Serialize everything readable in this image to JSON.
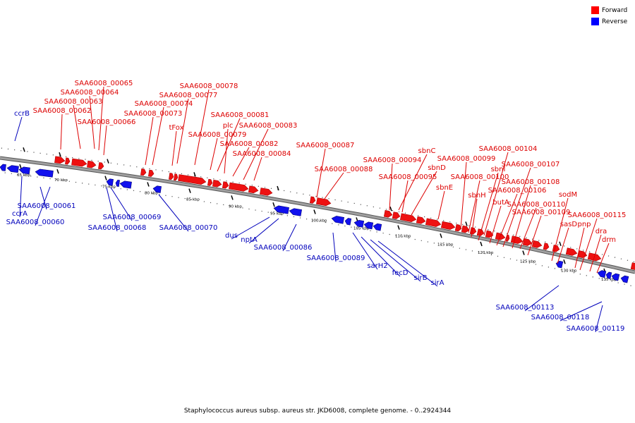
{
  "legend": {
    "forward_label": "Forward",
    "reverse_label": "Reverse",
    "forward_color": "#ff0000",
    "reverse_color": "#0000ff"
  },
  "caption": "Staphylococcus aureus subsp. aureus str. JKD6008, complete genome. - 0..2924344",
  "colors": {
    "forward_gene": "#ee1111",
    "reverse_gene": "#1111ee",
    "backbone": "#808080"
  },
  "ticks": [
    "65 kbp",
    "70 kbp",
    "75 kbp",
    "80 kbp",
    "85 kbp",
    "90 kbp",
    "95 kbp",
    "100 kbp",
    "105 kbp",
    "110 kbp",
    "115 kbp",
    "120 kbp",
    "125 kbp",
    "130 kbp",
    "135 kbp"
  ],
  "forward_labels": [
    "SAA6008_00065",
    "SAA6008_00064",
    "SAA6008_00063",
    "SAA6008_00062",
    "SAA6008_00066",
    "SAA6008_00074",
    "SAA6008_00073",
    "SAA6008_00078",
    "SAA6008_00077",
    "tFox",
    "SAA6008_00081",
    "plc",
    "SAA6008_00083",
    "SAA6008_00079",
    "SAA6008_00082",
    "SAA6008_00084",
    "SAA6008_00087",
    "SAA6008_00088",
    "sbnC",
    "SAA6008_00094",
    "sbnD",
    "SAA6008_00095",
    "sbnE",
    "SAA6008_00104",
    "SAA6008_00099",
    "sbnI",
    "SAA6008_00107",
    "SAA6008_00100",
    "sbnH",
    "SAA6008_00108",
    "SAA6008_00106",
    "butA",
    "sodM",
    "SAA6008_00110",
    "SAA6008_00109",
    "sasD",
    "pnp",
    "SAA6008_00115",
    "dra",
    "drm"
  ],
  "reverse_labels": [
    "ccrB",
    "ccrA",
    "SAA6008_00061",
    "SAA6008_00060",
    "SAA6008_00069",
    "SAA6008_00068",
    "SAA6008_00070",
    "dus",
    "nptA",
    "SAA6008_00086",
    "SAA6008_00089",
    "sarH2",
    "fecD",
    "sirB",
    "sirA",
    "SAA6008_00113",
    "SAA6008_00118",
    "SAA6008_00119"
  ]
}
